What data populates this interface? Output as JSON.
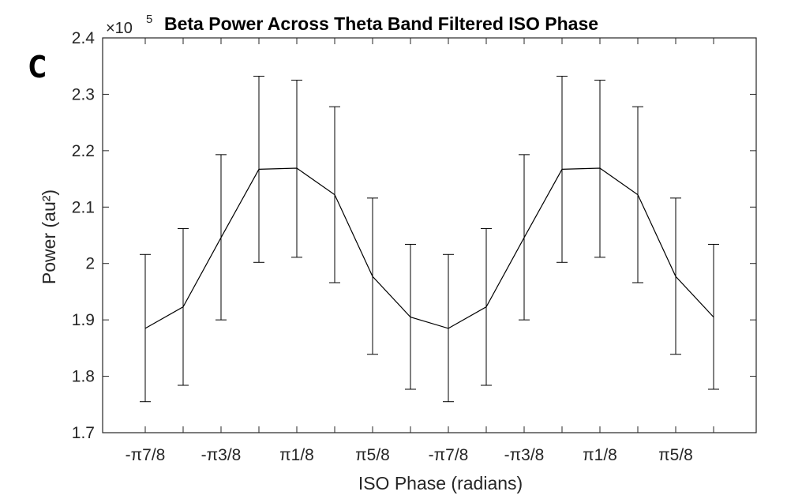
{
  "panel_letter": "C",
  "chart_data": {
    "type": "line",
    "title": "Beta Power Across Theta Band Filtered ISO Phase",
    "xlabel": "ISO Phase (radians)",
    "ylabel": "Power (au²)",
    "y_exponent_base": "×10",
    "y_exponent_power": "5",
    "ylim": [
      1.7,
      2.4
    ],
    "y_ticks": [
      "1.7",
      "1.8",
      "1.9",
      "2",
      "2.1",
      "2.2",
      "2.3",
      "2.4"
    ],
    "x_tick_labels": [
      "-π7/8",
      "-π3/8",
      "π1/8",
      "π5/8",
      "-π7/8",
      "-π3/8",
      "π1/8",
      "π5/8"
    ],
    "grid": false,
    "series": [
      {
        "values": [
          1.885,
          1.923,
          2.046,
          2.167,
          2.169,
          2.122,
          1.977,
          1.905,
          1.885,
          1.923,
          2.046,
          2.167,
          2.169,
          2.122,
          1.977,
          1.905
        ],
        "error_low": [
          1.755,
          1.784,
          1.9,
          2.002,
          2.011,
          1.966,
          1.839,
          1.777,
          1.755,
          1.784,
          1.9,
          2.002,
          2.011,
          1.966,
          1.839,
          1.777
        ],
        "error_high": [
          2.016,
          2.062,
          2.193,
          2.332,
          2.325,
          2.278,
          2.116,
          2.034,
          2.016,
          2.062,
          2.193,
          2.332,
          2.325,
          2.278,
          2.116,
          2.034
        ]
      }
    ]
  }
}
